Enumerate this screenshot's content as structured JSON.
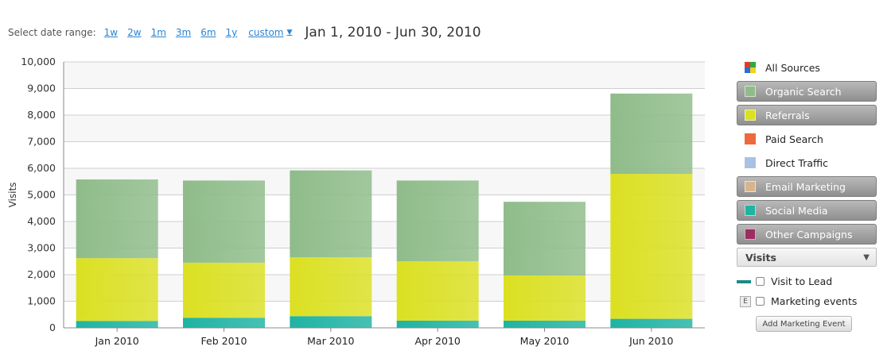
{
  "toolbar": {
    "label": "Select date range:",
    "ranges": [
      "1w",
      "2w",
      "1m",
      "3m",
      "6m",
      "1y"
    ],
    "custom_label": "custom",
    "custom_caret": "▼",
    "date_range": "Jan 1, 2010 - Jun 30, 2010"
  },
  "legend": {
    "items": [
      {
        "label": "All Sources",
        "style": "plain",
        "icon": "all-sources-icon"
      },
      {
        "label": "Organic Search",
        "style": "button",
        "color": "#8fbc8a"
      },
      {
        "label": "Referrals",
        "style": "button",
        "color": "#dbe022"
      },
      {
        "label": "Paid Search",
        "style": "plain",
        "color": "#ee6a3c"
      },
      {
        "label": "Direct Traffic",
        "style": "plain",
        "color": "#a9c2e3"
      },
      {
        "label": "Email Marketing",
        "style": "button",
        "color": "#d6b48c"
      },
      {
        "label": "Social Media",
        "style": "button",
        "color": "#1fb3a3"
      },
      {
        "label": "Other Campaigns",
        "style": "button",
        "color": "#9a2e63"
      }
    ],
    "metric": "Visits",
    "metric_arrow": "▼",
    "visit_to_lead": "Visit to Lead",
    "marketing_events": "Marketing events",
    "event_icon_letter": "E",
    "add_event_button": "Add Marketing Event"
  },
  "chart_data": {
    "type": "bar",
    "stacked": true,
    "categories": [
      "Jan 2010",
      "Feb 2010",
      "Mar 2010",
      "Apr 2010",
      "May 2010",
      "Jun 2010"
    ],
    "series": [
      {
        "name": "Social Media",
        "color": "#1fb3a3",
        "values": [
          260,
          380,
          440,
          270,
          270,
          340
        ]
      },
      {
        "name": "Referrals",
        "color": "#dbe022",
        "values": [
          2360,
          2070,
          2210,
          2230,
          1700,
          5450
        ]
      },
      {
        "name": "Organic Search",
        "color": "#8fbc8a",
        "values": [
          2960,
          3090,
          3270,
          3040,
          2770,
          3020
        ]
      }
    ],
    "ylabel": "Visits",
    "ylim": [
      0,
      10000
    ],
    "yticks": [
      0,
      1000,
      2000,
      3000,
      4000,
      5000,
      6000,
      7000,
      8000,
      9000,
      10000
    ],
    "ytick_labels": [
      "0",
      "1,000",
      "2,000",
      "3,000",
      "4,000",
      "5,000",
      "6,000",
      "7,000",
      "8,000",
      "9,000",
      "10,000"
    ],
    "grid": true
  }
}
